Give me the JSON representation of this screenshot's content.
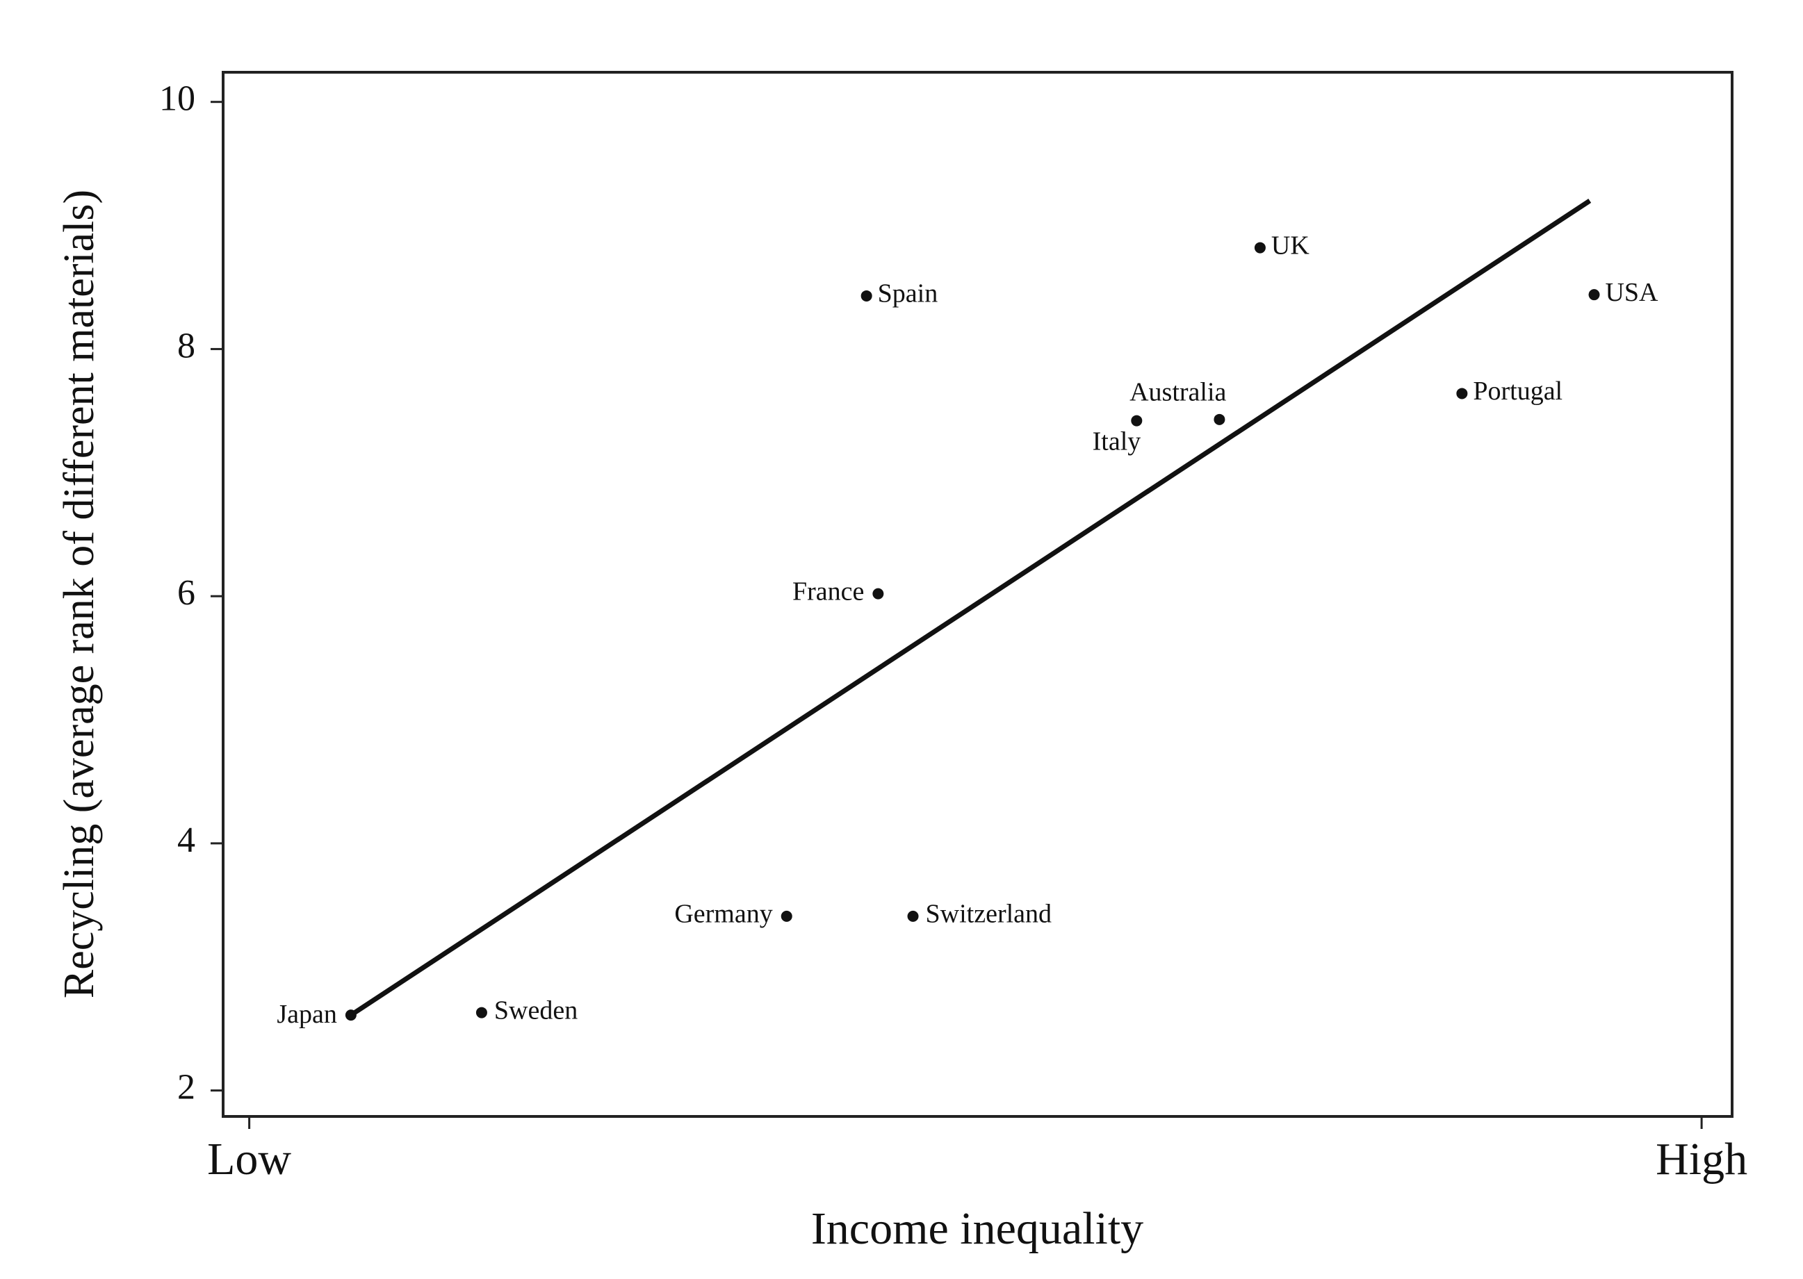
{
  "chart_data": {
    "type": "scatter",
    "xlabel": "Income inequality",
    "ylabel": "Recycling (average rank of different materials)",
    "labels": [
      "Japan",
      "Sweden",
      "Germany",
      "Switzerland",
      "France",
      "Spain",
      "Italy",
      "Australia",
      "UK",
      "Portugal",
      "USA"
    ],
    "x": [
      0.07,
      0.16,
      0.37,
      0.457,
      0.433,
      0.425,
      0.611,
      0.668,
      0.696,
      0.835,
      0.926
    ],
    "values": [
      2.61,
      2.63,
      3.41,
      3.41,
      6.02,
      8.43,
      7.42,
      7.43,
      8.82,
      7.64,
      8.44
    ],
    "color": "#111111",
    "fit_line": {
      "x": [
        0.07,
        0.923
      ],
      "y": [
        2.61,
        9.2
      ]
    },
    "xlim": [
      -0.018,
      1.021
    ],
    "ylim": [
      1.79,
      10.24
    ],
    "xticks": [
      {
        "value": 0,
        "label": "Low"
      },
      {
        "value": 1,
        "label": "High"
      }
    ],
    "yticks": [
      2,
      4,
      6,
      8,
      10
    ],
    "grid": false
  }
}
